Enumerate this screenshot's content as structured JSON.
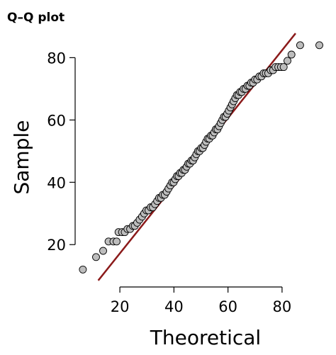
{
  "chart_data": {
    "type": "scatter",
    "title": "Q–Q plot",
    "xlabel": "Theoretical",
    "ylabel": "Sample",
    "xlim": [
      4.5,
      95.5
    ],
    "ylim": [
      8,
      88.5
    ],
    "xticks": [
      20,
      40,
      60,
      80
    ],
    "yticks": [
      20,
      40,
      60,
      80
    ],
    "grid": false,
    "legend": "none",
    "point_color": "#bdbdbd",
    "point_stroke": "#000000",
    "line_color": "#8b1a1a",
    "reference_line": {
      "x": [
        12,
        85
      ],
      "y": [
        8.5,
        87.8
      ]
    },
    "points": [
      [
        6.3,
        12
      ],
      [
        11.2,
        16
      ],
      [
        13.8,
        18
      ],
      [
        15.8,
        21
      ],
      [
        17.6,
        21
      ],
      [
        18.8,
        21
      ],
      [
        19.5,
        24
      ],
      [
        20.8,
        24
      ],
      [
        21.8,
        24
      ],
      [
        22.8,
        25
      ],
      [
        23.8,
        25
      ],
      [
        24.8,
        26
      ],
      [
        25.5,
        26
      ],
      [
        26.4,
        27
      ],
      [
        27.3,
        28
      ],
      [
        28.2,
        29
      ],
      [
        29,
        30
      ],
      [
        29.8,
        31
      ],
      [
        30.6,
        31
      ],
      [
        31.4,
        32
      ],
      [
        32.2,
        32
      ],
      [
        33,
        33
      ],
      [
        33.8,
        34
      ],
      [
        34.5,
        35
      ],
      [
        35.2,
        35
      ],
      [
        35.9,
        36
      ],
      [
        36.6,
        36
      ],
      [
        37.3,
        37
      ],
      [
        38,
        38
      ],
      [
        38.7,
        39
      ],
      [
        39.3,
        40
      ],
      [
        39.9,
        40
      ],
      [
        40.5,
        41
      ],
      [
        41.1,
        42
      ],
      [
        41.7,
        42
      ],
      [
        42.3,
        43
      ],
      [
        42.9,
        43
      ],
      [
        43.5,
        44
      ],
      [
        44.1,
        44
      ],
      [
        44.7,
        45
      ],
      [
        45.3,
        46
      ],
      [
        45.9,
        46
      ],
      [
        46.5,
        47
      ],
      [
        47.1,
        47
      ],
      [
        47.7,
        48
      ],
      [
        48.3,
        49
      ],
      [
        48.9,
        50
      ],
      [
        49.5,
        50
      ],
      [
        50.1,
        51
      ],
      [
        50.7,
        51
      ],
      [
        51.3,
        52
      ],
      [
        51.9,
        53
      ],
      [
        52.5,
        54
      ],
      [
        53.1,
        54
      ],
      [
        53.7,
        55
      ],
      [
        54.3,
        55
      ],
      [
        54.9,
        56
      ],
      [
        55.5,
        57
      ],
      [
        56.1,
        57
      ],
      [
        56.7,
        58
      ],
      [
        57.3,
        59
      ],
      [
        57.9,
        60
      ],
      [
        58.5,
        61
      ],
      [
        59.1,
        61
      ],
      [
        59.7,
        62
      ],
      [
        60.3,
        63
      ],
      [
        60.9,
        64
      ],
      [
        61.5,
        65
      ],
      [
        62.1,
        66
      ],
      [
        62.7,
        67
      ],
      [
        63.3,
        68
      ],
      [
        63.9,
        68
      ],
      [
        64.5,
        69
      ],
      [
        65.1,
        69
      ],
      [
        65.8,
        70
      ],
      [
        66.5,
        70
      ],
      [
        67.2,
        71
      ],
      [
        67.9,
        71
      ],
      [
        68.6,
        72
      ],
      [
        69.3,
        72
      ],
      [
        70,
        73
      ],
      [
        70.8,
        73
      ],
      [
        71.6,
        74
      ],
      [
        72.4,
        74
      ],
      [
        73.2,
        75
      ],
      [
        74,
        75
      ],
      [
        74.9,
        75
      ],
      [
        75.8,
        76
      ],
      [
        76.7,
        76
      ],
      [
        77.6,
        77
      ],
      [
        78.6,
        77
      ],
      [
        79.6,
        77
      ],
      [
        80.6,
        77
      ],
      [
        82,
        79
      ],
      [
        83.5,
        81
      ],
      [
        86.7,
        84
      ],
      [
        93.8,
        84
      ]
    ]
  }
}
